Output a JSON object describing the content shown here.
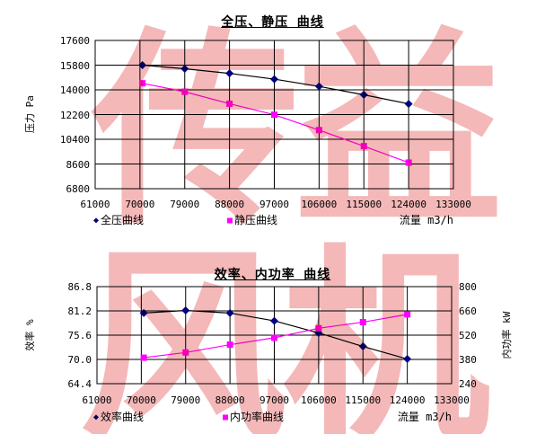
{
  "watermark": {
    "line1": "传益",
    "line2": "风机",
    "color": "#DA1212",
    "opacity": 0.3
  },
  "colors": {
    "series_marker_navy": "#000080",
    "series_line_black": "#000000",
    "series_magenta": "#FF00FF",
    "grid": "#000000",
    "background": "#FFFFFF"
  },
  "chart_data": [
    {
      "type": "line",
      "title": "全压、静压 曲线",
      "xlabel": "流量 m3/h",
      "ylabel": "压力 Pa",
      "x": [
        70500,
        79000,
        88000,
        97000,
        106000,
        115000,
        124000
      ],
      "series": [
        {
          "name": "全压曲线",
          "axis": "left",
          "marker": "diamond",
          "marker_color": "#000080",
          "line_color": "#000000",
          "values": [
            15800,
            15540,
            15200,
            14780,
            14250,
            13640,
            12980
          ]
        },
        {
          "name": "静压曲线",
          "axis": "left",
          "marker": "square",
          "marker_color": "#FF00FF",
          "line_color": "#FF00FF",
          "values": [
            14480,
            13860,
            12990,
            12190,
            11070,
            9900,
            8700
          ]
        }
      ],
      "xlim": [
        61000,
        133000
      ],
      "xtick_values": [
        61000,
        70000,
        79000,
        88000,
        97000,
        106000,
        115000,
        124000,
        133000
      ],
      "xtick_labels": [
        "61000",
        "70000",
        "79000",
        "88000",
        "97000",
        "106000",
        "115000",
        "124000",
        "133000"
      ],
      "ylim": [
        6800,
        17600
      ],
      "ytick_values": [
        6800,
        8600,
        10400,
        12200,
        14000,
        15800,
        17600
      ],
      "ytick_labels": [
        "6800",
        "8600",
        "10400",
        "12200",
        "14000",
        "15800",
        "17600"
      ],
      "grid": true,
      "legend_position": "bottom"
    },
    {
      "type": "line",
      "title": "效率、内功率 曲线",
      "xlabel": "流量 m3/h",
      "ylabel_left": "效率 %",
      "ylabel_right": "内功率 kW",
      "x": [
        70500,
        79000,
        88000,
        97000,
        106000,
        115000,
        124000
      ],
      "series": [
        {
          "name": "效率曲线",
          "axis": "left",
          "marker": "diamond",
          "marker_color": "#000080",
          "line_color": "#000000",
          "values": [
            80.7,
            81.3,
            80.7,
            78.9,
            76.1,
            73.0,
            70.1
          ]
        },
        {
          "name": "内功率曲线",
          "axis": "right",
          "marker": "square",
          "marker_color": "#FF00FF",
          "line_color": "#FF00FF",
          "values": [
            390,
            420,
            465,
            505,
            560,
            595,
            640
          ]
        }
      ],
      "xlim": [
        61000,
        133000
      ],
      "xtick_values": [
        61000,
        70000,
        79000,
        88000,
        97000,
        106000,
        115000,
        124000,
        133000
      ],
      "xtick_labels": [
        "61000",
        "70000",
        "79000",
        "88000",
        "97000",
        "106000",
        "115000",
        "124000",
        "133000"
      ],
      "ylim_left": [
        64.4,
        86.8
      ],
      "ytick_values_left": [
        64.4,
        70.0,
        75.6,
        81.2,
        86.8
      ],
      "ytick_labels_left": [
        "64.4",
        "70.0",
        "75.6",
        "81.2",
        "86.8"
      ],
      "ylim_right": [
        240,
        800
      ],
      "ytick_values_right": [
        240,
        380,
        520,
        660,
        800
      ],
      "ytick_labels_right": [
        "240",
        "380",
        "520",
        "660",
        "800"
      ],
      "grid": true,
      "legend_position": "bottom"
    }
  ]
}
